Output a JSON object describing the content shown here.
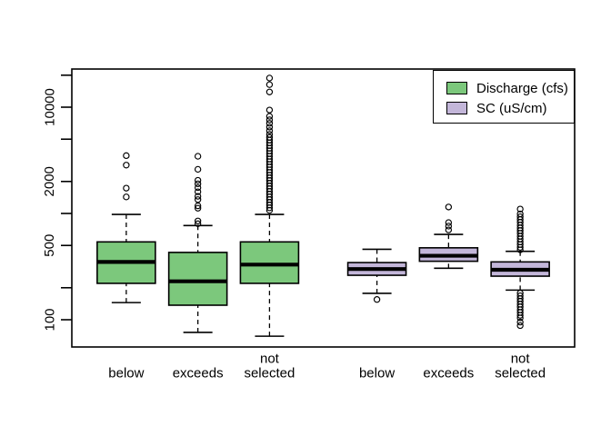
{
  "legend": {
    "items": [
      {
        "label": "Discharge (cfs)",
        "color": "#7cc87c"
      },
      {
        "label": "SC (uS/cm)",
        "color": "#c3b6d9"
      }
    ]
  },
  "chart_data": {
    "type": "boxplot",
    "title": "",
    "xlabel": "",
    "ylabel": "",
    "y_scale": "log10",
    "grid": false,
    "legend_position": "topright",
    "y_axis": {
      "ticks": [
        100,
        200,
        500,
        1000,
        2000,
        5000,
        10000,
        20000
      ],
      "labeled_ticks": [
        "100",
        "500",
        "2000",
        "10000"
      ],
      "y_range_approx": [
        55,
        23000
      ]
    },
    "categories": [
      "below",
      "exceeds",
      "not\nselected",
      "below",
      "exceeds",
      "not\nselected"
    ],
    "series_colors": {
      "Discharge (cfs)": "#7cc87c",
      "SC (uS/cm)": "#c3b6d9"
    },
    "boxes": [
      {
        "series": "Discharge (cfs)",
        "category": "below",
        "label": "below",
        "position": 1,
        "color": "#7cc87c",
        "stats": {
          "whisker_low": 145,
          "q1": 220,
          "median": 350,
          "q3": 540,
          "whisker_high": 980
        },
        "outliers": [
          1430,
          1730,
          2850,
          3500
        ]
      },
      {
        "series": "Discharge (cfs)",
        "category": "exceeds",
        "label": "exceeds",
        "position": 2,
        "color": "#7cc87c",
        "stats": {
          "whisker_low": 76,
          "q1": 137,
          "median": 230,
          "q3": 430,
          "whisker_high": 770
        },
        "outliers": [
          3450,
          2600,
          2050,
          1900,
          1750,
          1600,
          1450,
          1350,
          1180,
          1120,
          850,
          800
        ]
      },
      {
        "series": "Discharge (cfs)",
        "category": "not selected",
        "label": "not\nselected",
        "position": 3,
        "color": "#7cc87c",
        "stats": {
          "whisker_low": 70,
          "q1": 220,
          "median": 330,
          "q3": 540,
          "whisker_high": 980
        },
        "outliers": [
          18800,
          16300,
          13900,
          9400,
          8200,
          7600,
          7050,
          6500,
          6000,
          5550,
          5200,
          4900,
          4620,
          4360,
          4110,
          3880,
          3660,
          3450,
          3250,
          3070,
          2890,
          2730,
          2570,
          2430,
          2290,
          2160,
          2040,
          1920,
          1810,
          1710,
          1610,
          1520,
          1430,
          1350,
          1270,
          1200,
          1130,
          1070
        ]
      },
      {
        "series": "SC (uS/cm)",
        "category": "below",
        "label": "below",
        "position": 4.5,
        "color": "#c3b6d9",
        "stats": {
          "whisker_low": 177,
          "q1": 262,
          "median": 300,
          "q3": 345,
          "whisker_high": 460
        },
        "outliers": [
          155
        ]
      },
      {
        "series": "SC (uS/cm)",
        "category": "exceeds",
        "label": "exceeds",
        "position": 5.5,
        "color": "#c3b6d9",
        "stats": {
          "whisker_low": 305,
          "q1": 355,
          "median": 400,
          "q3": 475,
          "whisker_high": 635
        },
        "outliers": [
          1150,
          820,
          760,
          700
        ]
      },
      {
        "series": "SC (uS/cm)",
        "category": "not selected",
        "label": "not\nselected",
        "position": 6.5,
        "color": "#c3b6d9",
        "stats": {
          "whisker_low": 190,
          "q1": 257,
          "median": 295,
          "q3": 350,
          "whisker_high": 440
        },
        "outliers": [
          1100,
          990,
          930,
          875,
          825,
          775,
          730,
          690,
          650,
          610,
          575,
          540,
          510,
          480,
          455,
          178,
          168,
          158,
          149,
          140,
          132,
          124,
          117,
          110,
          104,
          95,
          88
        ]
      }
    ]
  }
}
